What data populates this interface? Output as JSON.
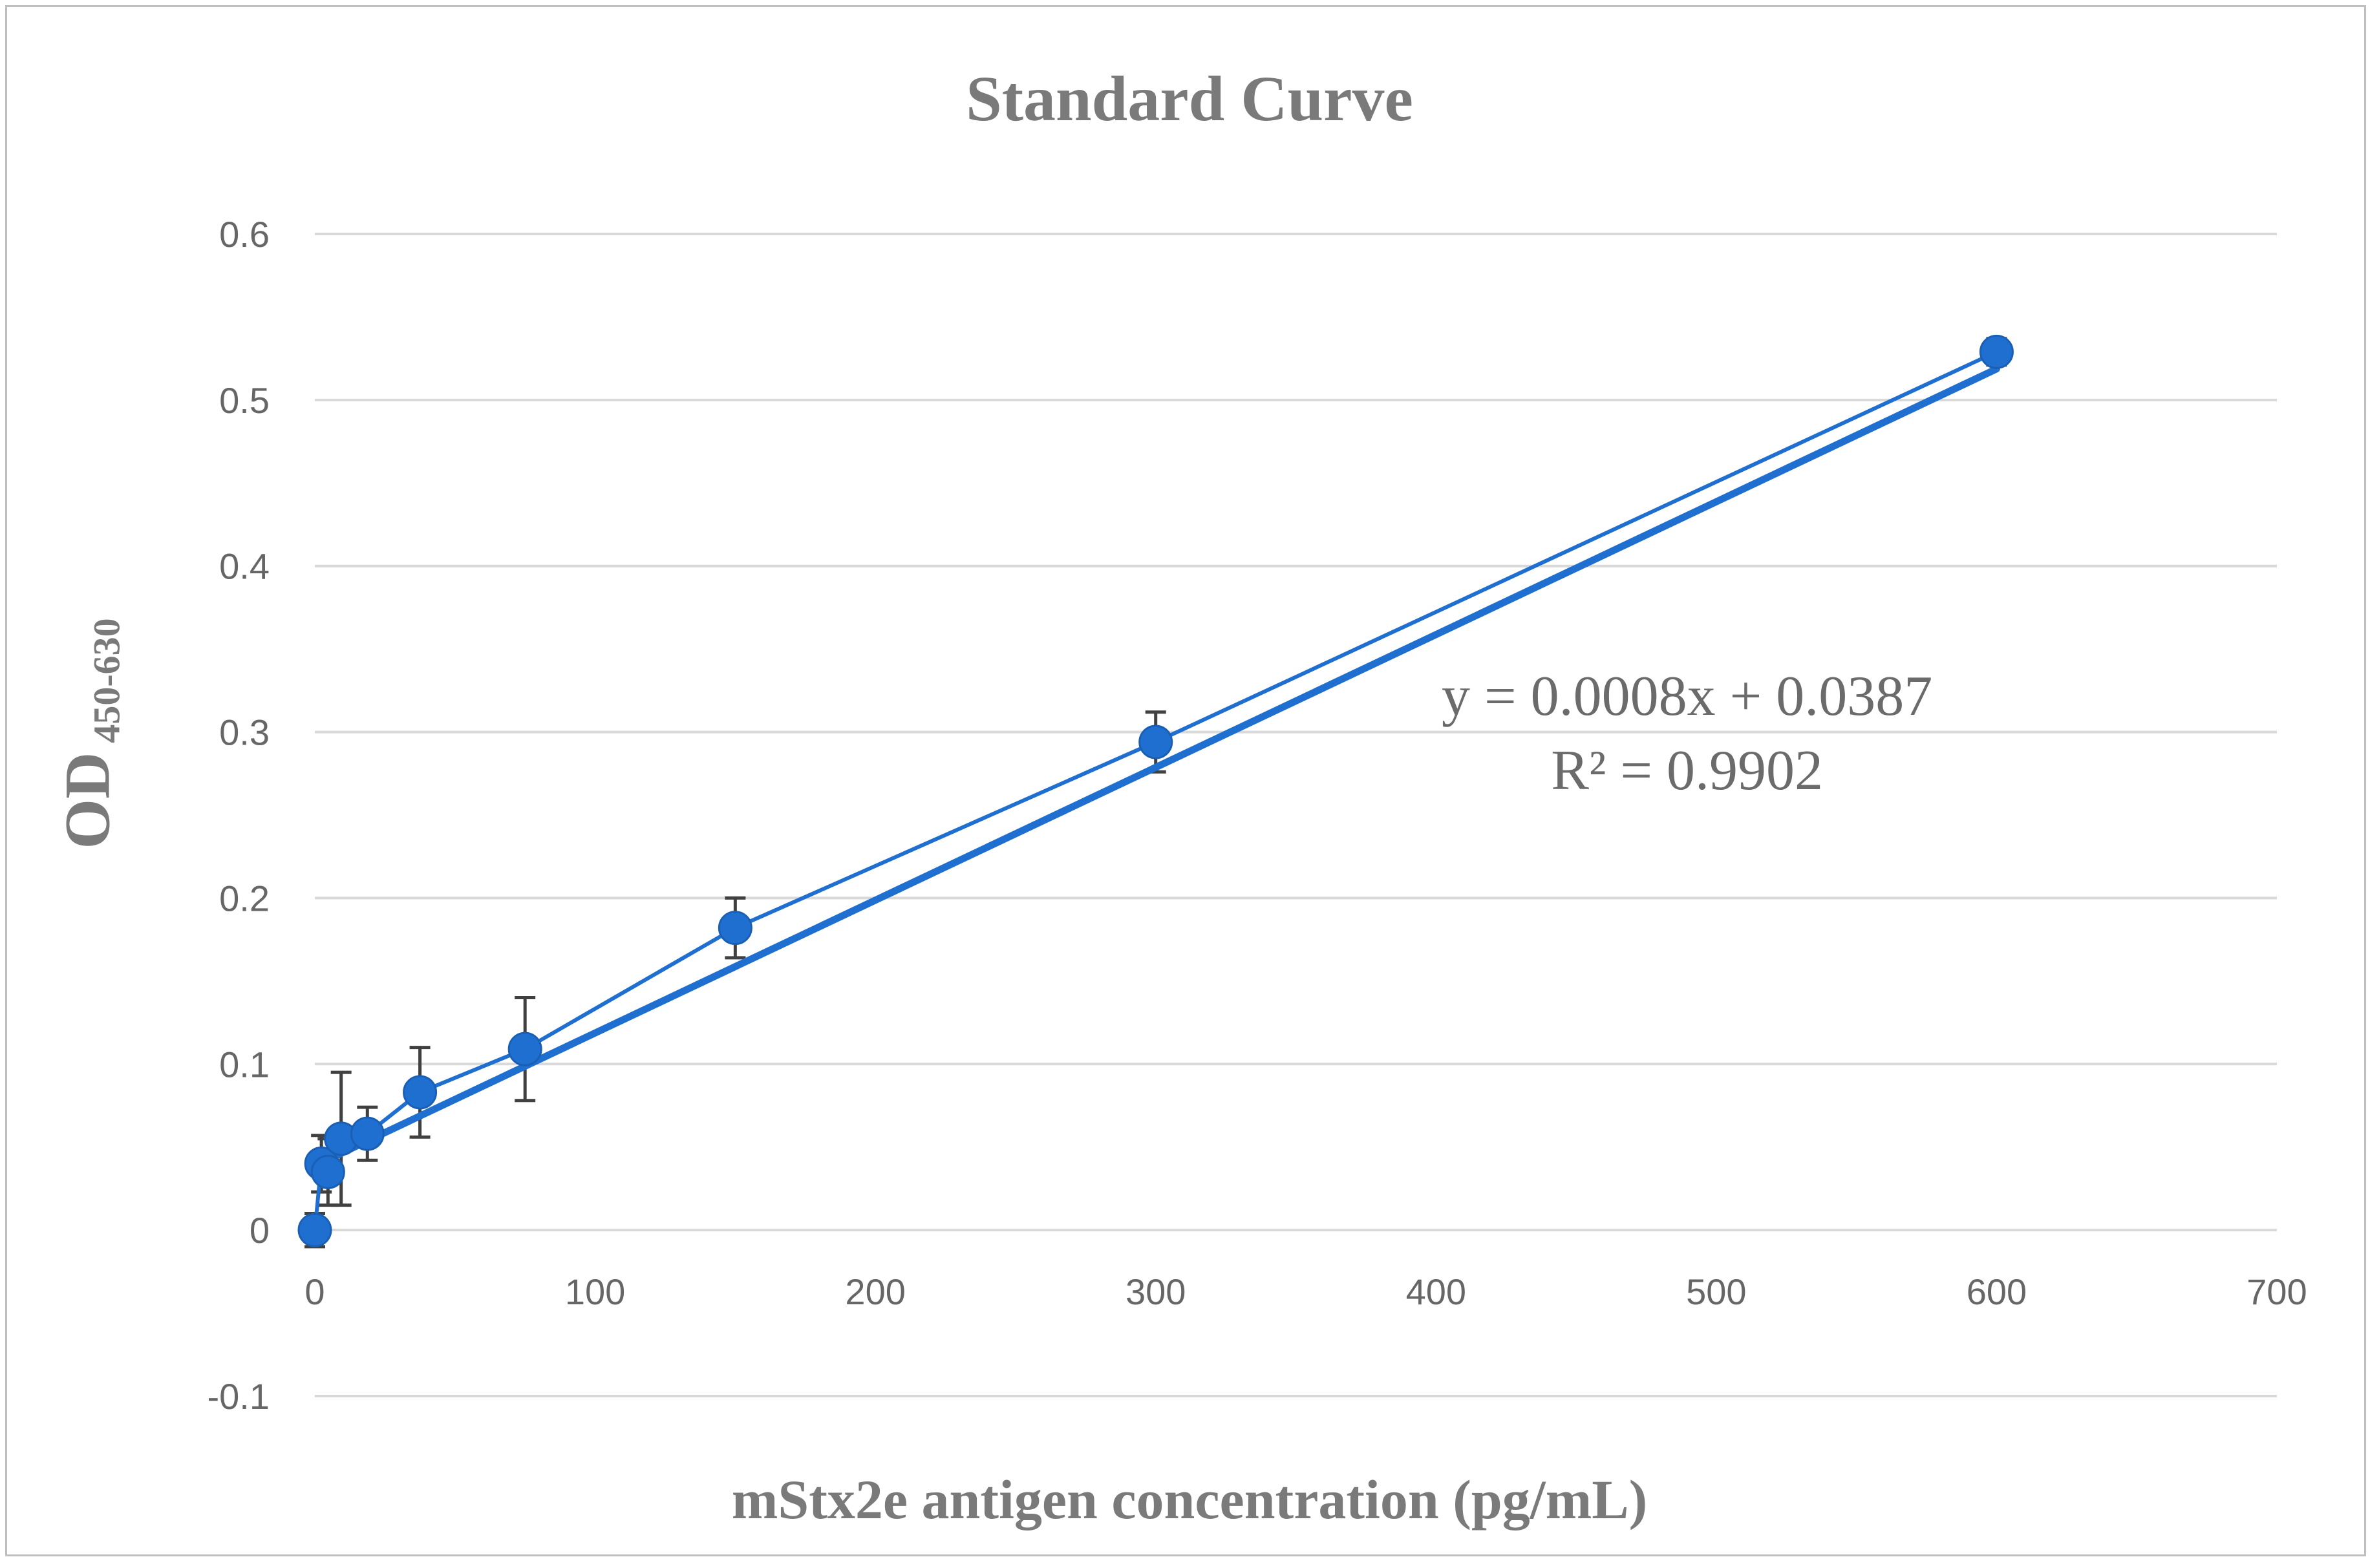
{
  "chart_data": {
    "type": "scatter",
    "title": "Standard Curve",
    "xlabel": "mStx2e antigen concentration (pg/mL)",
    "ylabel": "OD",
    "ylabel_subscript": "450-630",
    "xlim": [
      0,
      700
    ],
    "ylim": [
      -0.1,
      0.6
    ],
    "xticks": [
      "0",
      "100",
      "200",
      "300",
      "400",
      "500",
      "600",
      "700"
    ],
    "yticks": [
      "-0.1",
      "0",
      "0.1",
      "0.2",
      "0.3",
      "0.4",
      "0.5",
      "0.6"
    ],
    "grid": true,
    "series": [
      {
        "name": "OD",
        "color": "#1f6fd1",
        "x": [
          0,
          2.34,
          4.69,
          9.38,
          18.75,
          37.5,
          75,
          150,
          300,
          600
        ],
        "y": [
          0.0,
          0.04,
          0.035,
          0.055,
          0.058,
          0.083,
          0.109,
          0.182,
          0.294,
          0.529
        ],
        "yerr": [
          0.01,
          0.017,
          0.02,
          0.04,
          0.016,
          0.027,
          0.031,
          0.018,
          0.018,
          0.008
        ]
      }
    ],
    "trendline": {
      "type": "linear",
      "slope": 0.0008,
      "intercept": 0.0387,
      "x_range": [
        0,
        600
      ],
      "equation": "y = 0.0008x + 0.0387",
      "r_squared": "R² = 0.9902"
    }
  }
}
